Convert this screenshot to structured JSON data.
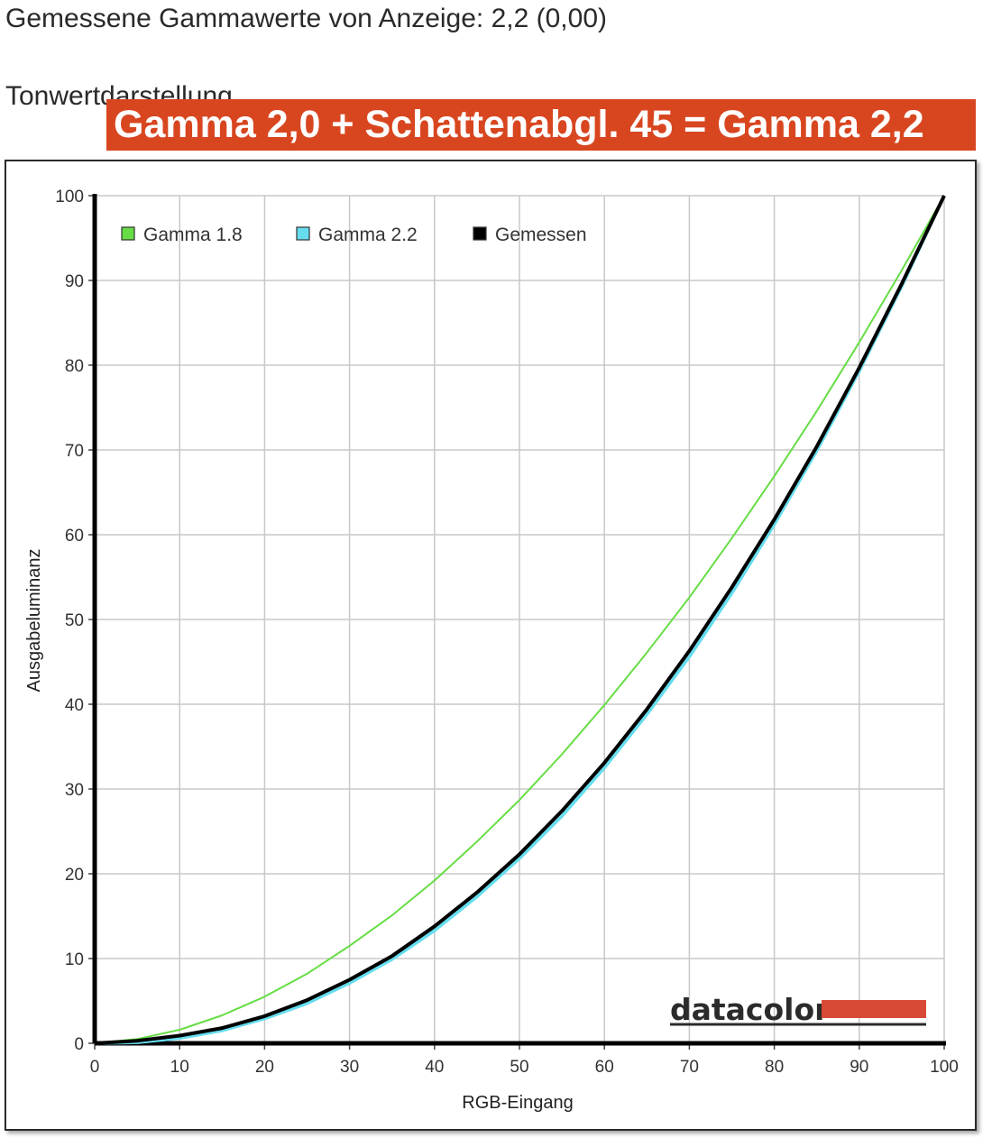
{
  "header": {
    "measured_text": "Gemessene Gammawerte von Anzeige: 2,2 (0,00)",
    "section_title": "Tonwertdarstellung",
    "banner": "Gamma 2,0 + Schattenabgl. 45 = Gamma 2,2"
  },
  "logo": {
    "text": "datacolor",
    "bar_color": "#d84a35"
  },
  "chart_data": {
    "type": "line",
    "xlabel": "RGB-Eingang",
    "ylabel": "Ausgabeluminanz",
    "xlim": [
      0,
      100
    ],
    "ylim": [
      0,
      100
    ],
    "xticks": [
      0,
      10,
      20,
      30,
      40,
      50,
      60,
      70,
      80,
      90,
      100
    ],
    "yticks": [
      0,
      10,
      20,
      30,
      40,
      50,
      60,
      70,
      80,
      90,
      100
    ],
    "grid": true,
    "legend_position": "top-left",
    "series": [
      {
        "name": "Gamma 1.8",
        "color": "#66dd44",
        "x": [
          0,
          5,
          10,
          15,
          20,
          25,
          30,
          35,
          40,
          45,
          50,
          55,
          60,
          65,
          70,
          75,
          80,
          85,
          90,
          95,
          100
        ],
        "y": [
          0,
          0.5,
          1.6,
          3.3,
          5.5,
          8.2,
          11.5,
          15.1,
          19.2,
          23.8,
          28.7,
          34.1,
          39.9,
          46.1,
          52.6,
          59.6,
          66.9,
          74.6,
          82.7,
          91.2,
          100
        ]
      },
      {
        "name": "Gamma 2.2",
        "color": "#66ddee",
        "x": [
          0,
          5,
          10,
          15,
          20,
          25,
          30,
          35,
          40,
          45,
          50,
          55,
          60,
          65,
          70,
          75,
          80,
          85,
          90,
          95,
          100
        ],
        "y": [
          0,
          0.1,
          0.6,
          1.5,
          2.9,
          4.7,
          7.1,
          9.9,
          13.3,
          17.3,
          21.8,
          26.8,
          32.5,
          38.8,
          45.6,
          53.1,
          61.2,
          69.9,
          79.3,
          89.3,
          100
        ]
      },
      {
        "name": "Gemessen",
        "color": "#000000",
        "x": [
          0,
          5,
          10,
          15,
          20,
          25,
          30,
          35,
          40,
          45,
          50,
          55,
          60,
          65,
          70,
          75,
          80,
          85,
          90,
          95,
          100
        ],
        "y": [
          0,
          0.3,
          0.9,
          1.8,
          3.2,
          5.1,
          7.5,
          10.3,
          13.8,
          17.8,
          22.3,
          27.4,
          33.1,
          39.4,
          46.3,
          53.8,
          61.8,
          70.4,
          79.7,
          89.6,
          100
        ]
      }
    ]
  }
}
